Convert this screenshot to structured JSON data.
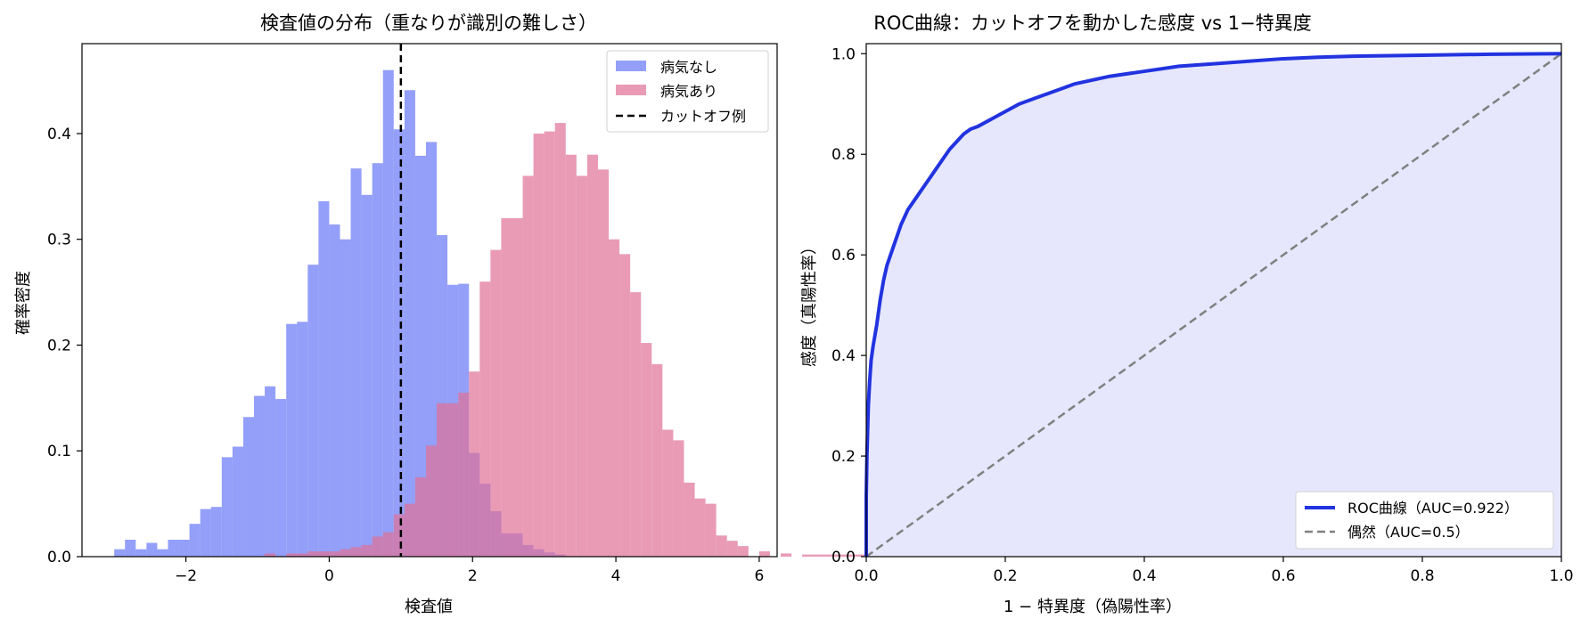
{
  "chart_data": [
    {
      "type": "histogram",
      "title": "検査値の分布（重なりが識別の難しさ）",
      "xlabel": "検査値",
      "ylabel": "確率密度",
      "xlim": [
        -3.45,
        6.25
      ],
      "ylim": [
        0,
        0.485
      ],
      "xticks": [
        -2,
        0,
        2,
        4,
        6
      ],
      "xtick_labels": [
        "−2",
        "0",
        "2",
        "4",
        "6"
      ],
      "yticks": [
        0.0,
        0.1,
        0.2,
        0.3,
        0.4
      ],
      "ytick_labels": [
        "0.0",
        "0.1",
        "0.2",
        "0.3",
        "0.4"
      ],
      "bin_width": 0.15,
      "cutoff": 1.0,
      "series": [
        {
          "name": "病気なし",
          "color": "#6f7ff5",
          "bins_start": -3.0,
          "values": [
            0.007,
            0.016,
            0.007,
            0.013,
            0.007,
            0.016,
            0.016,
            0.031,
            0.045,
            0.047,
            0.094,
            0.104,
            0.132,
            0.152,
            0.161,
            0.149,
            0.22,
            0.222,
            0.276,
            0.336,
            0.314,
            0.3,
            0.367,
            0.342,
            0.372,
            0.46,
            0.404,
            0.441,
            0.379,
            0.392,
            0.304,
            0.257,
            0.258,
            0.098,
            0.069,
            0.043,
            0.022,
            0.022,
            0.011,
            0.007,
            0.004,
            0.002
          ]
        },
        {
          "name": "病気あり",
          "color": "#e07097",
          "bins_start": -0.9,
          "values": [
            0.003,
            0.0,
            0.003,
            0.003,
            0.005,
            0.005,
            0.005,
            0.007,
            0.009,
            0.011,
            0.019,
            0.023,
            0.04,
            0.05,
            0.075,
            0.105,
            0.145,
            0.145,
            0.155,
            0.175,
            0.26,
            0.29,
            0.32,
            0.32,
            0.36,
            0.4,
            0.402,
            0.41,
            0.38,
            0.36,
            0.38,
            0.366,
            0.3,
            0.286,
            0.25,
            0.202,
            0.182,
            0.12,
            0.11,
            0.07,
            0.055,
            0.05,
            0.02,
            0.015,
            0.01,
            0.0,
            0.005,
            0.0,
            0.003,
            0.0,
            0.002,
            0.002,
            0.002,
            0.002,
            0.002,
            0.002,
            0.002,
            0.002,
            0.002,
            0.002
          ]
        }
      ],
      "legend": {
        "position": "upper right",
        "entries": [
          "病気なし",
          "病気あり",
          "カットオフ例"
        ]
      }
    },
    {
      "type": "line",
      "title": "ROC曲線：カットオフを動かした感度 vs 1−特異度",
      "xlabel": "1 − 特異度（偽陽性率）",
      "ylabel": "感度（真陽性率）",
      "xlim": [
        0,
        1
      ],
      "ylim": [
        0,
        1.02
      ],
      "xticks": [
        0,
        0.2,
        0.4,
        0.6,
        0.8,
        1.0
      ],
      "xtick_labels": [
        "0.0",
        "0.2",
        "0.4",
        "0.6",
        "0.8",
        "1.0"
      ],
      "yticks": [
        0,
        0.2,
        0.4,
        0.6,
        0.8,
        1.0
      ],
      "ytick_labels": [
        "0.0",
        "0.2",
        "0.4",
        "0.6",
        "0.8",
        "1.0"
      ],
      "series": [
        {
          "name": "ROC曲線（AUC=0.922）",
          "color": "#2233e0",
          "fill": "#e6e7fc",
          "x": [
            0.0,
            0.0,
            0.001,
            0.002,
            0.003,
            0.005,
            0.007,
            0.01,
            0.015,
            0.02,
            0.025,
            0.03,
            0.035,
            0.04,
            0.05,
            0.06,
            0.07,
            0.08,
            0.09,
            0.1,
            0.11,
            0.12,
            0.13,
            0.14,
            0.15,
            0.16,
            0.18,
            0.2,
            0.22,
            0.25,
            0.28,
            0.3,
            0.35,
            0.4,
            0.45,
            0.5,
            0.55,
            0.6,
            0.65,
            0.7,
            0.8,
            0.9,
            1.0
          ],
          "y": [
            0.0,
            0.12,
            0.2,
            0.25,
            0.3,
            0.35,
            0.39,
            0.42,
            0.46,
            0.51,
            0.55,
            0.58,
            0.6,
            0.62,
            0.66,
            0.69,
            0.71,
            0.73,
            0.75,
            0.77,
            0.79,
            0.81,
            0.825,
            0.84,
            0.85,
            0.855,
            0.87,
            0.885,
            0.9,
            0.915,
            0.93,
            0.94,
            0.955,
            0.965,
            0.975,
            0.98,
            0.985,
            0.99,
            0.993,
            0.995,
            0.997,
            0.999,
            1.0
          ]
        },
        {
          "name": "偶然（AUC=0.5）",
          "color": "#808080",
          "x": [
            0,
            1
          ],
          "y": [
            0,
            1
          ]
        }
      ],
      "legend": {
        "position": "lower right",
        "entries": [
          "ROC曲線（AUC=0.922）",
          "偶然（AUC=0.5）"
        ]
      }
    }
  ]
}
